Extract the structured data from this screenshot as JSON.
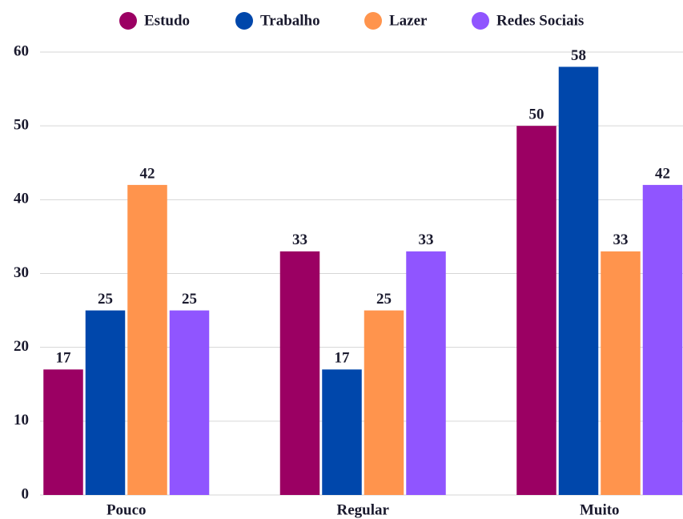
{
  "chart_data": {
    "type": "bar",
    "categories": [
      "Pouco",
      "Regular",
      "Muito"
    ],
    "series": [
      {
        "name": "Estudo",
        "color": "#9b0063",
        "values": [
          17,
          33,
          50
        ]
      },
      {
        "name": "Trabalho",
        "color": "#0047ab",
        "values": [
          25,
          17,
          58
        ]
      },
      {
        "name": "Lazer",
        "color": "#ff944d",
        "values": [
          42,
          25,
          33
        ]
      },
      {
        "name": "Redes Sociais",
        "color": "#9055ff",
        "values": [
          25,
          33,
          42
        ]
      }
    ],
    "ylim": [
      0,
      60
    ],
    "yticks": [
      0,
      10,
      20,
      30,
      40,
      50,
      60
    ],
    "grid": true,
    "legend": "top"
  }
}
